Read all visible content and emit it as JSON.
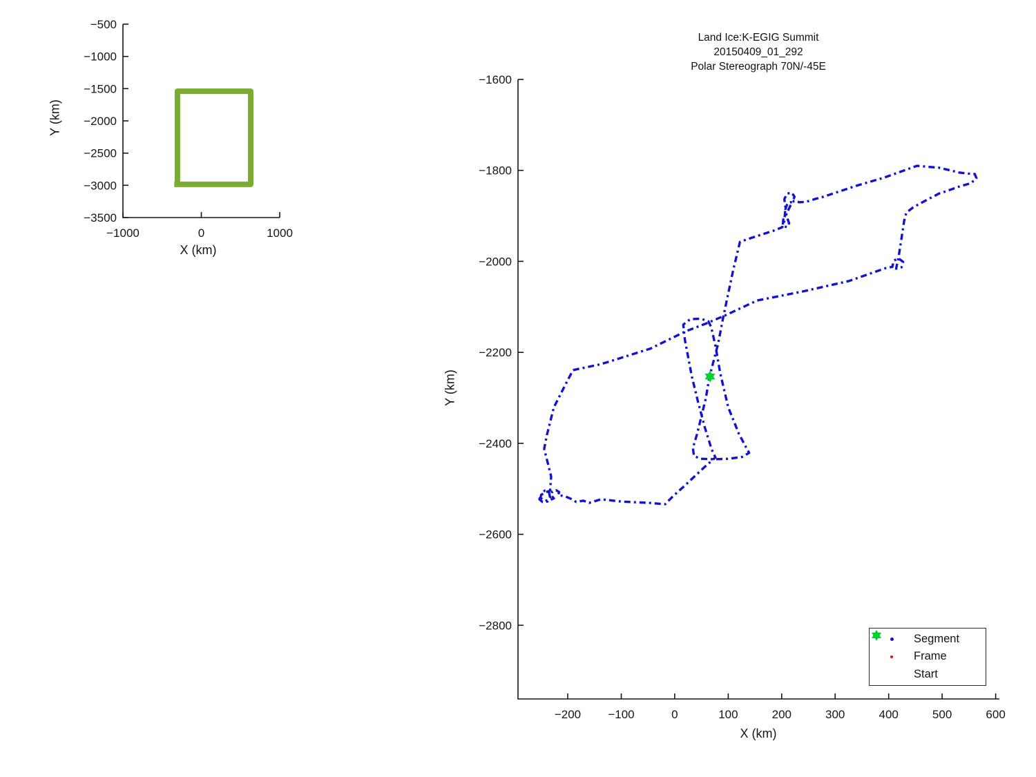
{
  "figure": {
    "background": "#ffffff",
    "axis_color": "#151515",
    "text_color": "#151515"
  },
  "chart_data": [
    {
      "id": "overview",
      "type": "line",
      "title": "",
      "xlabel": "X (km)",
      "ylabel": "Y (km)",
      "xlim": [
        -1000,
        1000
      ],
      "ylim": [
        -3500,
        -500
      ],
      "xticks": [
        -1000,
        0,
        1000
      ],
      "yticks": [
        -500,
        -1000,
        -1500,
        -2000,
        -2500,
        -3000,
        -3500
      ],
      "grid": false,
      "series": [
        {
          "name": "coverage-box",
          "color": "#7aac31",
          "width": 8,
          "dash": "",
          "points": [
            [
              -305,
              -2985
            ],
            [
              -305,
              -1540
            ],
            [
              630,
              -1540
            ],
            [
              630,
              -2985
            ],
            [
              -345,
              -2985
            ]
          ]
        }
      ]
    },
    {
      "id": "main",
      "type": "line",
      "title_lines": [
        "Land Ice:K-EGIG Summit",
        "20150409_01_292",
        "Polar Stereograph 70N/-45E"
      ],
      "xlabel": "X (km)",
      "ylabel": "Y (km)",
      "xlim": [
        -293,
        607
      ],
      "ylim": [
        -2962,
        -1600
      ],
      "xticks": [
        -200,
        -100,
        0,
        100,
        200,
        300,
        400,
        500,
        600
      ],
      "yticks": [
        -1600,
        -1800,
        -2000,
        -2200,
        -2400,
        -2600,
        -2800
      ],
      "grid": false,
      "legend": {
        "position": "southeast",
        "entries": [
          {
            "label": "Segment",
            "marker": "dot",
            "color": "#1212d0"
          },
          {
            "label": "Frame",
            "marker": "dot",
            "color": "#dd1111"
          },
          {
            "label": "Start",
            "marker": "hexagram",
            "color": "#00d22b"
          }
        ]
      },
      "start_marker": {
        "x": 66,
        "y": -2253,
        "color": "#00d22b"
      },
      "series": [
        {
          "name": "flight-track",
          "color": "#1212d0",
          "width": 3.4,
          "dash": "9 5 3 5",
          "points": [
            [
              -190,
              -2239
            ],
            [
              -138,
              -2226
            ],
            [
              -46,
              -2192
            ],
            [
              20,
              -2154
            ],
            [
              60,
              -2136
            ],
            [
              94,
              -2119
            ],
            [
              154,
              -2086
            ],
            [
              240,
              -2066
            ],
            [
              326,
              -2043
            ],
            [
              394,
              -2015
            ],
            [
              407,
              -2012
            ],
            [
              409,
              -1999
            ],
            [
              418,
              -1993
            ],
            [
              427,
              -2001
            ],
            [
              424,
              -2013
            ],
            [
              414,
              -2016
            ],
            [
              419,
              -1987
            ],
            [
              424,
              -1949
            ],
            [
              429,
              -1911
            ],
            [
              433,
              -1893
            ],
            [
              446,
              -1881
            ],
            [
              468,
              -1867
            ],
            [
              494,
              -1851
            ],
            [
              507,
              -1846
            ],
            [
              533,
              -1835
            ],
            [
              554,
              -1828
            ],
            [
              564,
              -1817
            ],
            [
              561,
              -1808
            ],
            [
              549,
              -1807
            ],
            [
              533,
              -1805
            ],
            [
              494,
              -1794
            ],
            [
              453,
              -1790
            ],
            [
              391,
              -1816
            ],
            [
              339,
              -1834
            ],
            [
              278,
              -1858
            ],
            [
              262,
              -1863
            ],
            [
              246,
              -1869
            ],
            [
              233,
              -1870
            ],
            [
              223,
              -1867
            ],
            [
              216,
              -1878
            ],
            [
              210,
              -1893
            ],
            [
              203,
              -1908
            ],
            [
              202,
              -1922
            ],
            [
              210,
              -1925
            ],
            [
              214,
              -1916
            ],
            [
              210,
              -1904
            ],
            [
              207,
              -1885
            ],
            [
              211,
              -1872
            ],
            [
              220,
              -1869
            ],
            [
              224,
              -1858
            ],
            [
              219,
              -1849
            ],
            [
              210,
              -1851
            ],
            [
              205,
              -1863
            ],
            [
              207,
              -1881
            ],
            [
              205,
              -1911
            ],
            [
              201,
              -1925
            ],
            [
              184,
              -1933
            ],
            [
              152,
              -1945
            ],
            [
              122,
              -1957
            ],
            [
              109,
              -2021
            ],
            [
              91,
              -2121
            ],
            [
              81,
              -2182
            ],
            [
              65,
              -2253
            ],
            [
              58,
              -2302
            ],
            [
              42,
              -2379
            ],
            [
              34,
              -2410
            ],
            [
              36,
              -2428
            ],
            [
              49,
              -2434
            ],
            [
              74,
              -2435
            ],
            [
              100,
              -2434
            ],
            [
              126,
              -2430
            ],
            [
              139,
              -2421
            ],
            [
              133,
              -2408
            ],
            [
              120,
              -2379
            ],
            [
              100,
              -2321
            ],
            [
              85,
              -2245
            ],
            [
              76,
              -2185
            ],
            [
              68,
              -2144
            ],
            [
              63,
              -2132
            ],
            [
              49,
              -2126
            ],
            [
              29,
              -2127
            ],
            [
              16,
              -2139
            ],
            [
              19,
              -2172
            ],
            [
              25,
              -2210
            ],
            [
              32,
              -2253
            ],
            [
              43,
              -2306
            ],
            [
              56,
              -2364
            ],
            [
              69,
              -2413
            ],
            [
              76,
              -2431
            ],
            [
              55,
              -2453
            ],
            [
              16,
              -2496
            ],
            [
              -3,
              -2516
            ],
            [
              -18,
              -2534
            ],
            [
              -48,
              -2531
            ],
            [
              -100,
              -2528
            ],
            [
              -138,
              -2523
            ],
            [
              -160,
              -2531
            ],
            [
              -171,
              -2526
            ],
            [
              -184,
              -2529
            ],
            [
              -194,
              -2522
            ],
            [
              -206,
              -2516
            ],
            [
              -218,
              -2514
            ],
            [
              -216,
              -2507
            ],
            [
              -222,
              -2503
            ],
            [
              -229,
              -2506
            ],
            [
              -231,
              -2514
            ],
            [
              -226,
              -2521
            ],
            [
              -234,
              -2525
            ],
            [
              -243,
              -2526
            ],
            [
              -251,
              -2520
            ],
            [
              -249,
              -2510
            ],
            [
              -243,
              -2504
            ],
            [
              -235,
              -2508
            ],
            [
              -233,
              -2519
            ],
            [
              -238,
              -2528
            ],
            [
              -247,
              -2529
            ],
            [
              -253,
              -2523
            ],
            [
              -251,
              -2514
            ],
            [
              -242,
              -2508
            ],
            [
              -233,
              -2504
            ],
            [
              -231,
              -2473
            ],
            [
              -244,
              -2412
            ],
            [
              -239,
              -2382
            ],
            [
              -226,
              -2321
            ],
            [
              -200,
              -2261
            ],
            [
              -190,
              -2239
            ]
          ]
        }
      ]
    }
  ]
}
